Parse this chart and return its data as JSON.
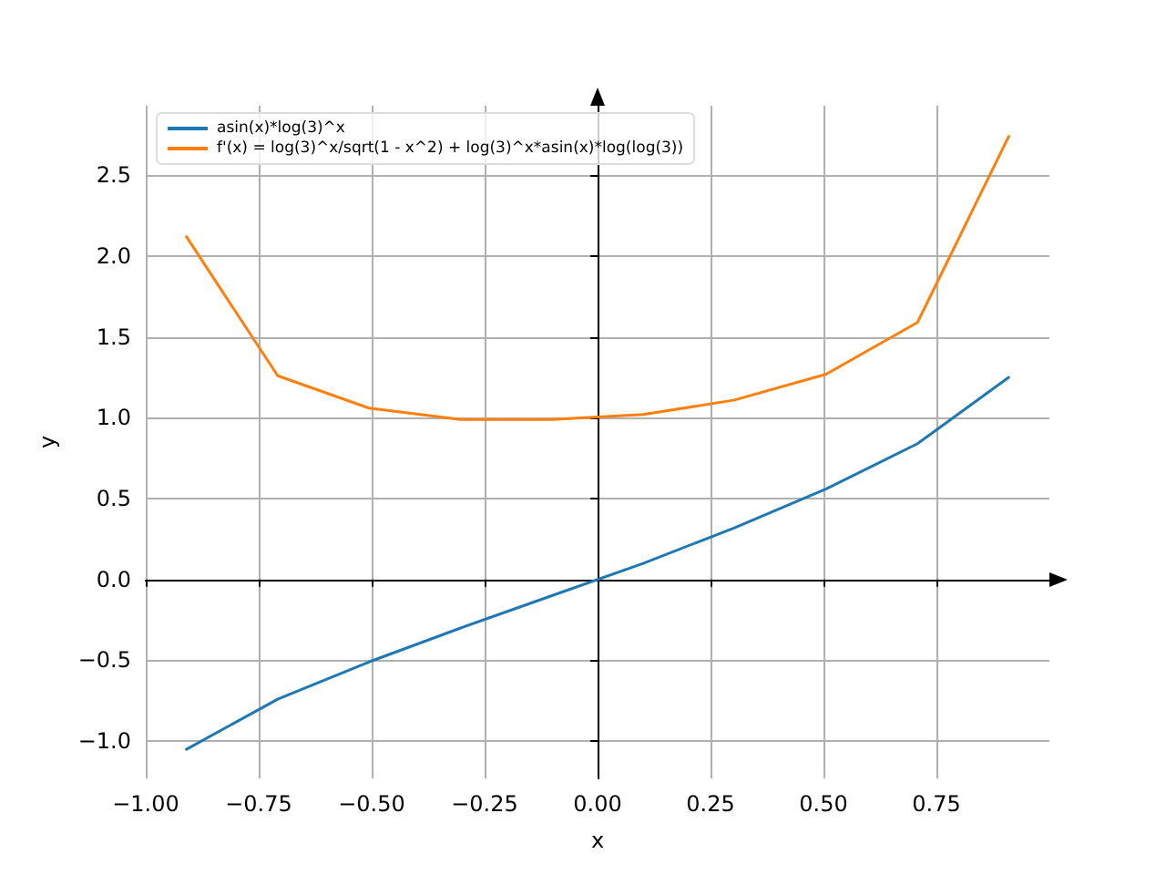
{
  "chart_data": {
    "type": "line",
    "xlabel": "x",
    "ylabel": "y",
    "x": [
      -0.91,
      -0.708,
      -0.506,
      -0.303,
      -0.101,
      0.101,
      0.303,
      0.506,
      0.708,
      0.91
    ],
    "series": [
      {
        "name": "asin(x)*log(3)^x",
        "color": "#1f77b4",
        "values": [
          -1.05,
          -0.74,
          -0.51,
          -0.3,
          -0.1,
          0.1,
          0.32,
          0.56,
          0.84,
          1.25
        ]
      },
      {
        "name": "f'(x) = log(3)^x/sqrt(1 - x^2) + log(3)^x*asin(x)*log(log(3))",
        "color": "#ff7f0e",
        "values": [
          2.12,
          1.26,
          1.06,
          0.99,
          0.99,
          1.02,
          1.11,
          1.27,
          1.59,
          2.74
        ]
      }
    ],
    "xlim": [
      -1.0,
      1.0
    ],
    "ylim": [
      -1.23,
      2.93
    ],
    "xticks": [
      {
        "value": -1,
        "label": "−1.00"
      },
      {
        "value": -0.75,
        "label": "−0.75"
      },
      {
        "value": -0.5,
        "label": "−0.50"
      },
      {
        "value": -0.25,
        "label": "−0.25"
      },
      {
        "value": 0,
        "label": "0.00"
      },
      {
        "value": 0.25,
        "label": "0.25"
      },
      {
        "value": 0.5,
        "label": "0.50"
      },
      {
        "value": 0.75,
        "label": "0.75"
      }
    ],
    "yticks": [
      {
        "value": -1,
        "label": "−1.0"
      },
      {
        "value": -0.5,
        "label": "−0.5"
      },
      {
        "value": 0,
        "label": "0.0"
      },
      {
        "value": 0.5,
        "label": "0.5"
      },
      {
        "value": 1,
        "label": "1.0"
      },
      {
        "value": 1.5,
        "label": "1.5"
      },
      {
        "value": 2,
        "label": "2.0"
      },
      {
        "value": 2.5,
        "label": "2.5"
      }
    ],
    "grid": true,
    "legend": "top left",
    "marker": "none",
    "line_style": "solid"
  }
}
